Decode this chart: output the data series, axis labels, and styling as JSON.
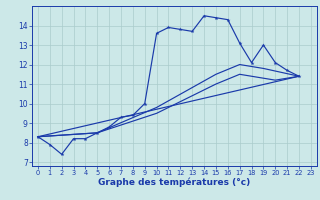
{
  "background_color": "#cce8e8",
  "grid_color": "#aacccc",
  "line_color": "#1a3aaa",
  "xlabel": "Graphe des températures (°c)",
  "ylim": [
    6.8,
    15.0
  ],
  "xlim": [
    -0.5,
    23.5
  ],
  "yticks": [
    7,
    8,
    9,
    10,
    11,
    12,
    13,
    14
  ],
  "xticks": [
    0,
    1,
    2,
    3,
    4,
    5,
    6,
    7,
    8,
    9,
    10,
    11,
    12,
    13,
    14,
    15,
    16,
    17,
    18,
    19,
    20,
    21,
    22,
    23
  ],
  "line_main": {
    "x": [
      0,
      1,
      2,
      3,
      4,
      5,
      6,
      7,
      8,
      9,
      10,
      11,
      12,
      13,
      14,
      15,
      16,
      17,
      18,
      19,
      20,
      21,
      22,
      23
    ],
    "y": [
      8.3,
      7.9,
      7.4,
      8.2,
      8.2,
      8.5,
      8.8,
      9.3,
      9.4,
      10.0,
      13.6,
      13.9,
      13.8,
      13.7,
      14.5,
      14.4,
      14.3,
      13.1,
      12.1,
      13.0,
      12.1,
      11.7,
      11.4,
      null
    ]
  },
  "line_smooth1": {
    "x": [
      0,
      22
    ],
    "y": [
      8.3,
      11.4
    ]
  },
  "line_smooth2": {
    "x": [
      0,
      5,
      10,
      15,
      17,
      20,
      22
    ],
    "y": [
      8.3,
      8.5,
      9.5,
      11.0,
      11.5,
      11.2,
      11.4
    ]
  },
  "line_smooth3": {
    "x": [
      0,
      5,
      10,
      15,
      17,
      19,
      22
    ],
    "y": [
      8.3,
      8.5,
      9.8,
      11.5,
      12.0,
      11.8,
      11.4
    ]
  }
}
